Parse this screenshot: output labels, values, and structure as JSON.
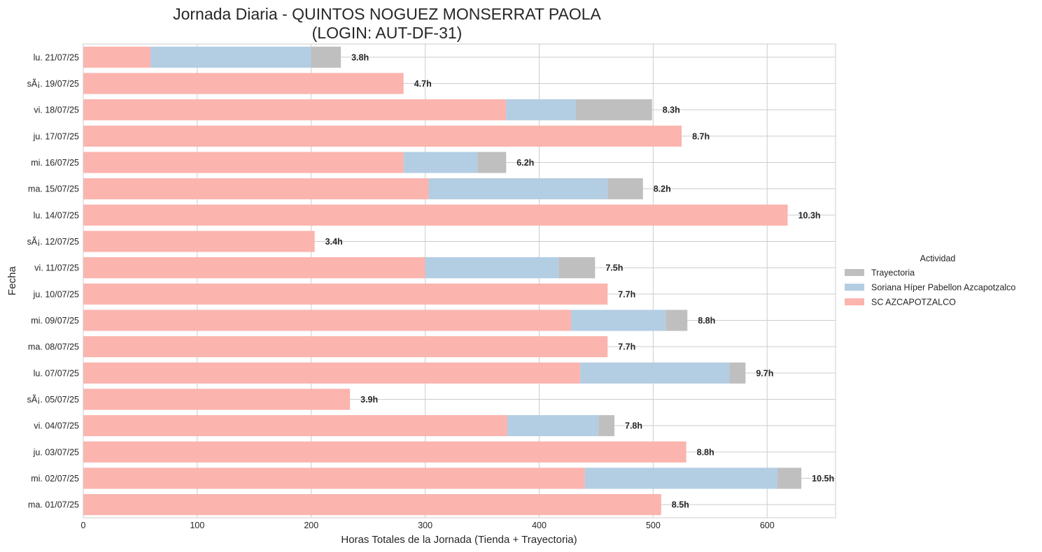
{
  "chart_data": {
    "type": "bar",
    "orientation": "horizontal",
    "stacked": true,
    "title": "Jornada Diaria - QUINTOS NOGUEZ MONSERRAT PAOLA",
    "subtitle": "(LOGIN: AUT-DF-31)",
    "xlabel": "Horas Totales de la Jornada (Tienda + Trayectoria)",
    "ylabel": "Fecha",
    "xlim": [
      0,
      660
    ],
    "xticks": [
      0,
      100,
      200,
      300,
      400,
      500,
      600
    ],
    "grid": true,
    "legend": {
      "title": "Actividad",
      "placement": "center-right outside",
      "entries": [
        "Trayectoria",
        "Soriana Híper Pabellon Azcapotzalco",
        "SC AZCAPOTZALCO"
      ]
    },
    "categories": [
      "lu. 21/07/25",
      "sÃ¡. 19/07/25",
      "vi. 18/07/25",
      "ju. 17/07/25",
      "mi. 16/07/25",
      "ma. 15/07/25",
      "lu. 14/07/25",
      "sÃ¡. 12/07/25",
      "vi. 11/07/25",
      "ju. 10/07/25",
      "mi. 09/07/25",
      "ma. 08/07/25",
      "lu. 07/07/25",
      "sÃ¡. 05/07/25",
      "vi. 04/07/25",
      "ju. 03/07/25",
      "mi. 02/07/25",
      "ma. 01/07/25"
    ],
    "series": [
      {
        "name": "SC AZCAPOTZALCO",
        "color": "#fbb4ae",
        "values": [
          59,
          281,
          371,
          525,
          281,
          303,
          618,
          203,
          300,
          460,
          428,
          460,
          436,
          234,
          372,
          529,
          440,
          507
        ]
      },
      {
        "name": "Soriana Híper Pabellon Azcapotzalco",
        "color": "#b3cde3",
        "values": [
          141,
          0,
          61,
          0,
          65,
          157,
          0,
          0,
          117,
          0,
          83,
          0,
          131,
          0,
          80,
          0,
          169,
          0
        ]
      },
      {
        "name": "Trayectoria",
        "color": "#bfbfbf",
        "values": [
          26,
          0,
          67,
          0,
          25,
          31,
          0,
          0,
          32,
          0,
          19,
          0,
          14,
          0,
          14,
          0,
          21,
          0
        ]
      }
    ],
    "data_labels": [
      "3.8h",
      "4.7h",
      "8.3h",
      "8.7h",
      "6.2h",
      "8.2h",
      "10.3h",
      "3.4h",
      "7.5h",
      "7.7h",
      "8.8h",
      "7.7h",
      "9.7h",
      "3.9h",
      "7.8h",
      "8.8h",
      "10.5h",
      "8.5h"
    ]
  }
}
